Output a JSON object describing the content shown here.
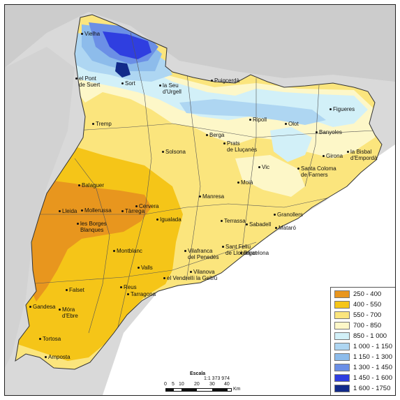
{
  "map": {
    "towns": [
      {
        "name": "Vielha",
        "label": "Vielha"
      },
      {
        "name": "el-pont-de-suert",
        "label": "el Pont\nde Suert"
      },
      {
        "name": "sort",
        "label": "Sort"
      },
      {
        "name": "la-seu-durgell",
        "label": "la Seu\nd'Urgell"
      },
      {
        "name": "puigcerda",
        "label": "Puigcerdà"
      },
      {
        "name": "tremp",
        "label": "Tremp"
      },
      {
        "name": "ripoll",
        "label": "Ripoll"
      },
      {
        "name": "olot",
        "label": "Olot"
      },
      {
        "name": "figueres",
        "label": "Figueres"
      },
      {
        "name": "berga",
        "label": "Berga"
      },
      {
        "name": "banyoles",
        "label": "Banyoles"
      },
      {
        "name": "solsona",
        "label": "Solsona"
      },
      {
        "name": "prats",
        "label": "Prats\nde Lluçanès"
      },
      {
        "name": "girona",
        "label": "Girona"
      },
      {
        "name": "la-bisbal",
        "label": "la Bisbal\nd'Empordà"
      },
      {
        "name": "vic",
        "label": "Vic"
      },
      {
        "name": "santa-coloma",
        "label": "Santa Coloma\nde Farners"
      },
      {
        "name": "balaguer",
        "label": "Balaguer"
      },
      {
        "name": "manresa",
        "label": "Manresa"
      },
      {
        "name": "moia",
        "label": "Moià"
      },
      {
        "name": "cervera",
        "label": "Cervera"
      },
      {
        "name": "lleida",
        "label": "Lleida"
      },
      {
        "name": "mollerussa",
        "label": "Mollerussa"
      },
      {
        "name": "tarrega",
        "label": "Tàrrega"
      },
      {
        "name": "granollers",
        "label": "Granollers"
      },
      {
        "name": "les-borges",
        "label": "les Borges\nBlanques"
      },
      {
        "name": "igualada",
        "label": "Igualada"
      },
      {
        "name": "terrassa",
        "label": "Terrassa"
      },
      {
        "name": "sabadell",
        "label": "Sabadell"
      },
      {
        "name": "mataro",
        "label": "Mataró"
      },
      {
        "name": "montblanc",
        "label": "Montblanc"
      },
      {
        "name": "vilafranca",
        "label": "Vilafranca\ndel Penedès"
      },
      {
        "name": "sant-feliu",
        "label": "Sant Feliu\nde Llobregat"
      },
      {
        "name": "barcelona",
        "label": "Barcelona"
      },
      {
        "name": "valls",
        "label": "Valls"
      },
      {
        "name": "vilanova",
        "label": "Vilanova\ni la Geltrú"
      },
      {
        "name": "el-vendrell",
        "label": "el Vendrell"
      },
      {
        "name": "falset",
        "label": "Falset"
      },
      {
        "name": "reus",
        "label": "Reus"
      },
      {
        "name": "mora",
        "label": "Móra\nd'Ebre"
      },
      {
        "name": "tarragona",
        "label": "Tarragona"
      },
      {
        "name": "gandesa",
        "label": "Gandesa"
      },
      {
        "name": "tortosa",
        "label": "Tortosa"
      },
      {
        "name": "amposta",
        "label": "Amposta"
      }
    ]
  },
  "legend": {
    "items": [
      {
        "label": "250 - 400",
        "color": "#e8961e"
      },
      {
        "label": "400 - 550",
        "color": "#f5c518"
      },
      {
        "label": "550 - 700",
        "color": "#fbe57d"
      },
      {
        "label": "700 - 850",
        "color": "#fdf7c8"
      },
      {
        "label": "850 - 1 000",
        "color": "#d2f0f8"
      },
      {
        "label": "1 000 - 1 150",
        "color": "#aed6f2"
      },
      {
        "label": "1 150 - 1 300",
        "color": "#8dbceb"
      },
      {
        "label": "1 300 - 1 450",
        "color": "#6b8fe6"
      },
      {
        "label": "1 450 - 1 600",
        "color": "#2f3ee0"
      },
      {
        "label": "1 600 - 1750",
        "color": "#122a8a"
      }
    ]
  },
  "scale": {
    "title": "Escala",
    "ratio": "1:1 373 974",
    "ticks": [
      "0",
      "5",
      "10",
      "20",
      "30",
      "40"
    ],
    "unit": "Km"
  }
}
